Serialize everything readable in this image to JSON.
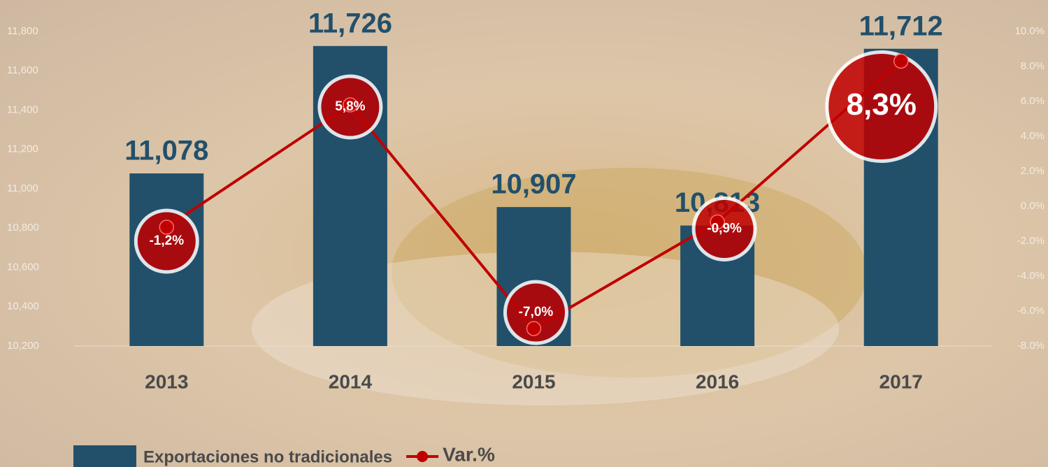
{
  "chart_data": {
    "type": "bar",
    "categories": [
      "2013",
      "2014",
      "2015",
      "2016",
      "2017"
    ],
    "series": [
      {
        "name": "Exportaciones no tradicionales",
        "color": "#22506b",
        "values": [
          11078,
          11726,
          10907,
          10813,
          11712
        ],
        "value_labels": [
          "11,078",
          "11,726",
          "10,907",
          "10,813",
          "11,712"
        ]
      },
      {
        "name": "Var.%",
        "type": "line",
        "axis": "y2",
        "color": "#c00000",
        "values": [
          -1.2,
          5.8,
          -7.0,
          -0.9,
          8.3
        ],
        "value_labels": [
          "-1,2%",
          "5,8%",
          "-7,0%",
          "-0,9%",
          "8,3%"
        ]
      }
    ],
    "ylim": [
      10200,
      11800
    ],
    "yticks": [
      {
        "value": 10200,
        "label": "10,200"
      },
      {
        "value": 10400,
        "label": "10,400"
      },
      {
        "value": 10600,
        "label": "10,600"
      },
      {
        "value": 10800,
        "label": "10,800"
      },
      {
        "value": 11000,
        "label": "11,000"
      },
      {
        "value": 11200,
        "label": "11,200"
      },
      {
        "value": 11400,
        "label": "11,400"
      },
      {
        "value": 11600,
        "label": "11,600"
      },
      {
        "value": 11800,
        "label": "11,800"
      }
    ],
    "y2lim": [
      -8,
      10
    ],
    "y2ticks": [
      {
        "value": -8,
        "label": "-8.0%"
      },
      {
        "value": -6,
        "label": "-6.0%"
      },
      {
        "value": -4,
        "label": "-4.0%"
      },
      {
        "value": -2,
        "label": "-2.0%"
      },
      {
        "value": 0,
        "label": "0.0%"
      },
      {
        "value": 2,
        "label": "2.0%"
      },
      {
        "value": 4,
        "label": "4.0%"
      },
      {
        "value": 6,
        "label": "6.0%"
      },
      {
        "value": 8,
        "label": "8.0%"
      },
      {
        "value": 10,
        "label": "10.0%"
      }
    ]
  }
}
